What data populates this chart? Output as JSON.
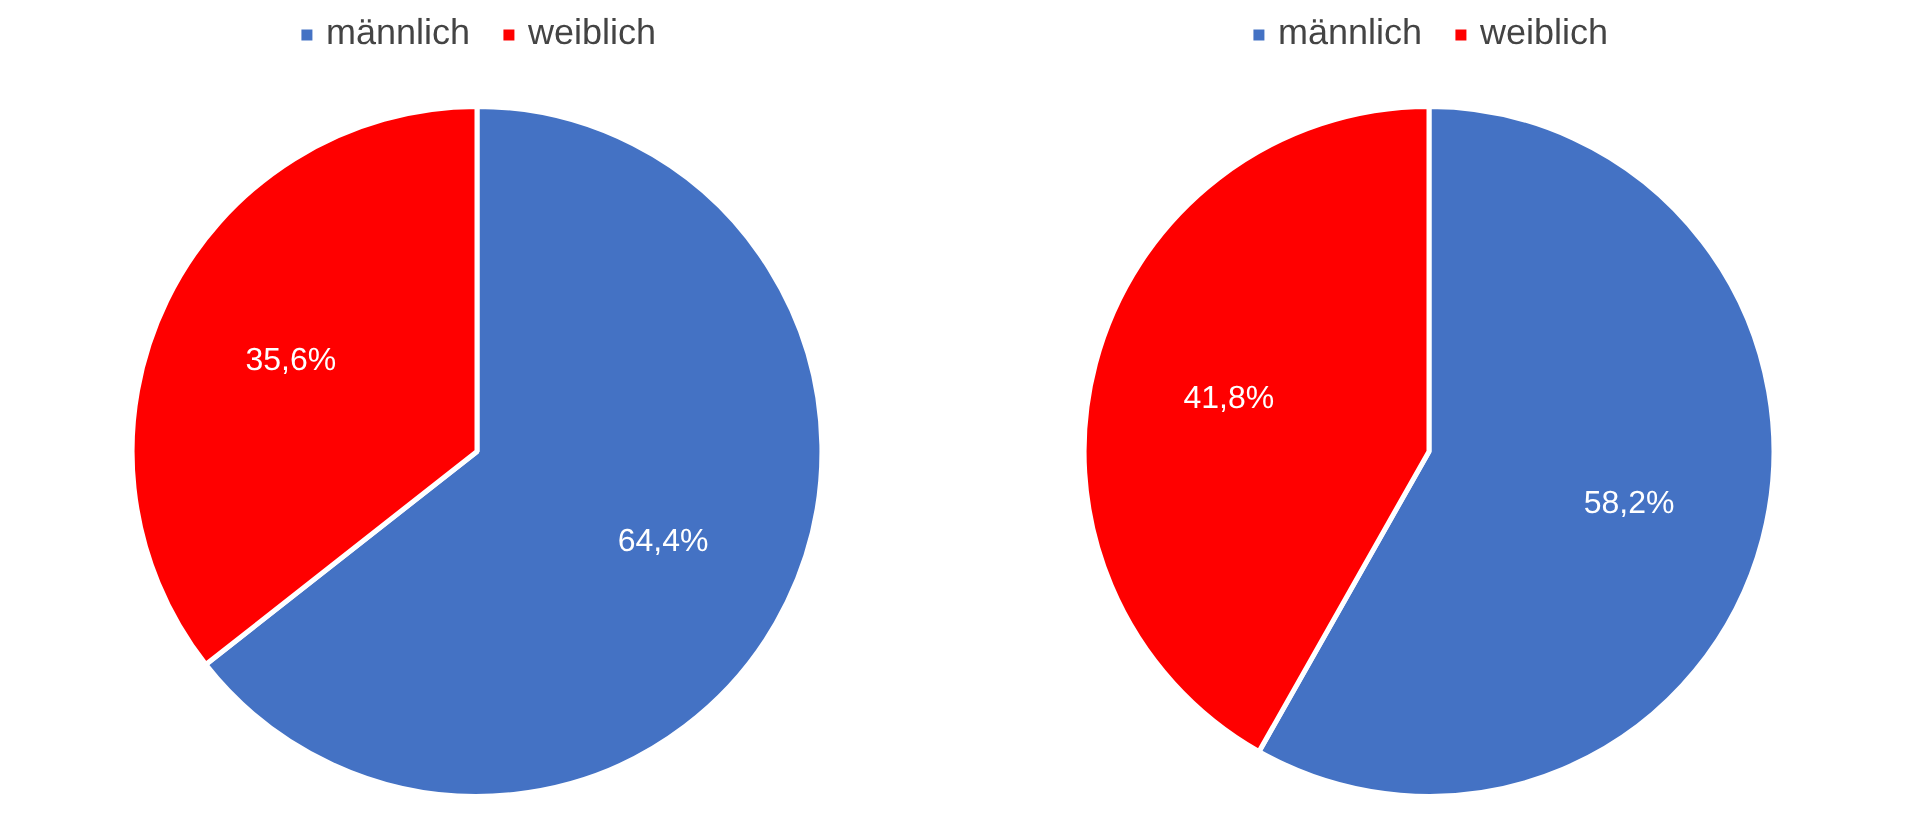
{
  "chart_data": [
    {
      "type": "pie",
      "categories": [
        "männlich",
        "weiblich"
      ],
      "values": [
        64.4,
        35.6
      ],
      "colors": [
        "#4472c4",
        "#ff0000"
      ],
      "value_labels": [
        "64,4%",
        "35,6%"
      ],
      "legend": "top"
    },
    {
      "type": "pie",
      "categories": [
        "männlich",
        "weiblich"
      ],
      "values": [
        58.2,
        41.8
      ],
      "colors": [
        "#4472c4",
        "#ff0000"
      ],
      "value_labels": [
        "58,2%",
        "41,8%"
      ],
      "legend": "top"
    }
  ]
}
